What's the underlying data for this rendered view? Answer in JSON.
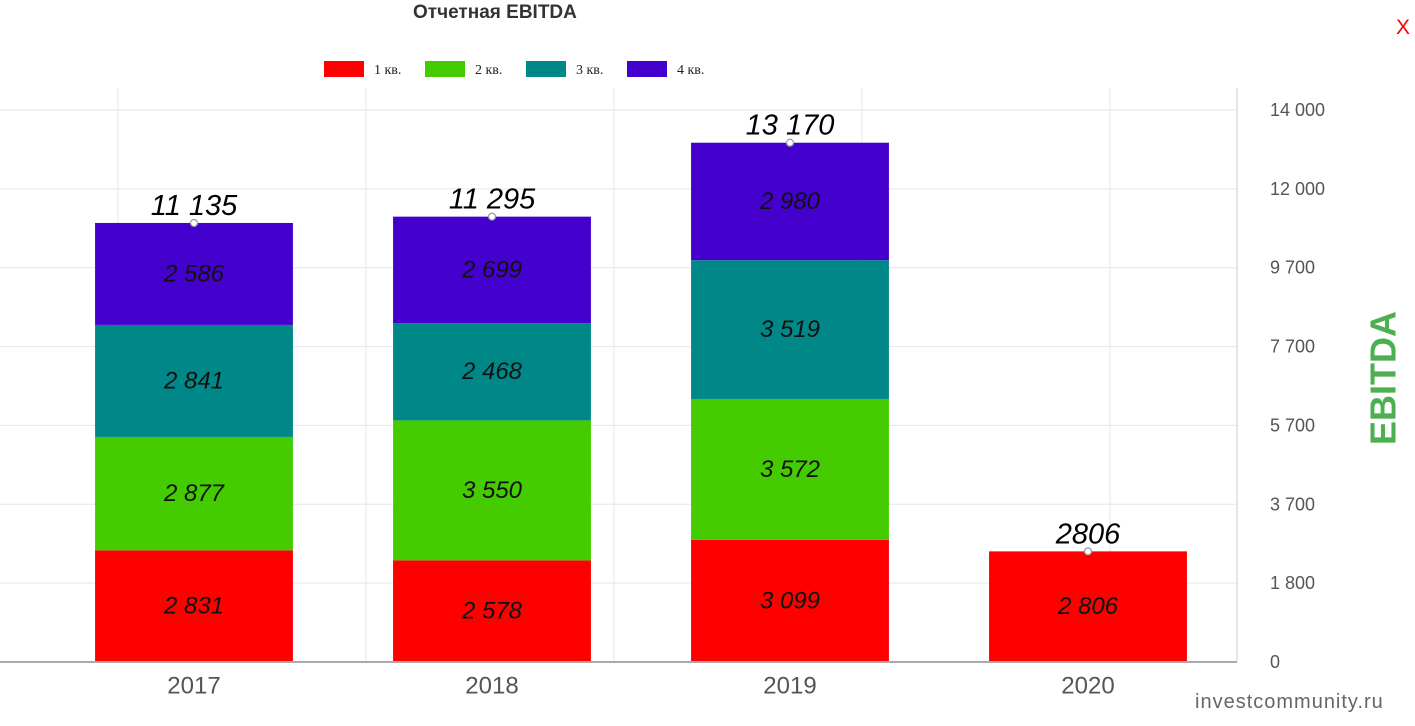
{
  "close_label": "X",
  "watermark": "investcommunity.ru",
  "colors": {
    "close_button": "#ff0000",
    "y_axis_title": "#4caf50"
  },
  "chart_data": {
    "type": "bar",
    "stacked": true,
    "title": "Отчетная EBITDA",
    "categories": [
      "2017",
      "2018",
      "2019",
      "2020"
    ],
    "series": [
      {
        "name": "1 кв.",
        "color": "#ff0000",
        "values": [
          2831,
          2578,
          3099,
          2806
        ],
        "labels": [
          "2 831",
          "2 578",
          "3 099",
          "2 806"
        ]
      },
      {
        "name": "2 кв.",
        "color": "#44cc00",
        "values": [
          2877,
          3550,
          3572,
          null
        ],
        "labels": [
          "2 877",
          "3 550",
          "3 572",
          null
        ]
      },
      {
        "name": "3 кв.",
        "color": "#008888",
        "values": [
          2841,
          2468,
          3519,
          null
        ],
        "labels": [
          "2 841",
          "2 468",
          "3 519",
          null
        ]
      },
      {
        "name": "4 кв.",
        "color": "#4400cc",
        "values": [
          2586,
          2699,
          2980,
          null
        ],
        "labels": [
          "2 586",
          "2 699",
          "2 980",
          null
        ]
      }
    ],
    "totals": {
      "values": [
        11135,
        11295,
        13170,
        2806
      ],
      "labels": [
        "11 135",
        "11 295",
        "13 170",
        "2806"
      ]
    },
    "ylabel": "EBITDA",
    "ylim": [
      0,
      14000
    ],
    "yticks": [
      "0",
      "1 800",
      "3 700",
      "5 700",
      "7 700",
      "9 700",
      "12 000",
      "14 000"
    ],
    "y_axis_side": "right",
    "grid": true,
    "legend": "top-center"
  }
}
